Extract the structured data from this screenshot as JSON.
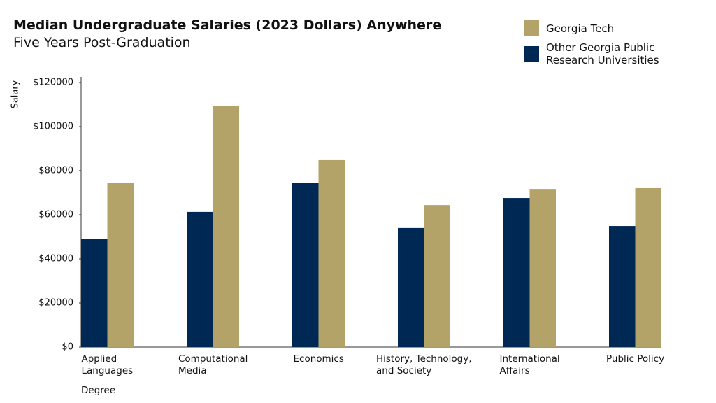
{
  "chart_data": {
    "type": "bar",
    "title": "Median Undergraduate Salaries (2023 Dollars) Anywhere",
    "subtitle": "Five Years Post-Graduation",
    "x_label": "Degree",
    "y_label": "Salary",
    "categories": [
      "Applied\nLanguages",
      "Computational\nMedia",
      "Economics",
      "History, Technology,\nand Society",
      "International\nAffairs",
      "Public Policy"
    ],
    "series": [
      {
        "name": "Other Georgia Public Research Universities",
        "color": "#002855",
        "values": [
          49000,
          61300,
          74600,
          54000,
          67600,
          54900
        ]
      },
      {
        "name": "Georgia Tech",
        "color": "#b3a369",
        "values": [
          74300,
          109500,
          85100,
          64400,
          71700,
          72400
        ]
      }
    ],
    "legend_order": [
      1,
      0
    ],
    "ylim": [
      0,
      120000
    ],
    "yticks": [
      {
        "value": 0,
        "label": "$0"
      },
      {
        "value": 20000,
        "label": "$20000"
      },
      {
        "value": 40000,
        "label": "$40000"
      },
      {
        "value": 60000,
        "label": "$60000"
      },
      {
        "value": 80000,
        "label": "$80000"
      },
      {
        "value": 100000,
        "label": "$100000"
      },
      {
        "value": 120000,
        "label": "$120000"
      }
    ],
    "grid": false
  }
}
